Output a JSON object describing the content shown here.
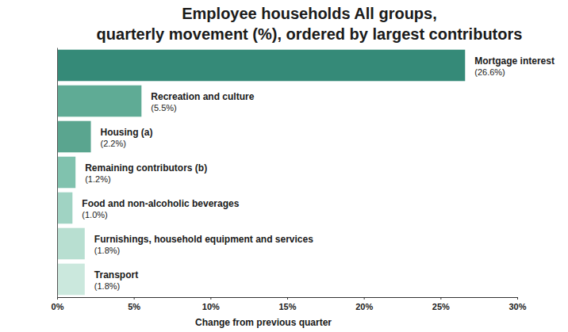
{
  "chart_data": {
    "type": "bar",
    "orientation": "horizontal",
    "title": "Employee households All groups,",
    "subtitle": "quarterly movement (%), ordered by largest contributors",
    "x_label": "Change from previous quarter",
    "categories": [
      "Mortgage interest",
      "Recreation and culture",
      "Housing (a)",
      "Remaining contributors (b)",
      "Food and non-alcoholic beverages",
      "Furnishings, household equipment and services",
      "Transport"
    ],
    "values": [
      26.6,
      5.5,
      2.2,
      1.2,
      1.0,
      1.8,
      1.8
    ],
    "value_labels": [
      "(26.6%)",
      "(5.5%)",
      "(2.2%)",
      "(1.2%)",
      "(1.0%)",
      "(1.8%)",
      "(1.8%)"
    ],
    "colors": [
      "#358a78",
      "#5fab95",
      "#5aa58f",
      "#80c2ae",
      "#a0d3c3",
      "#b8dfd1",
      "#cbe8dd"
    ],
    "xlim": [
      0,
      30
    ],
    "xticks": [
      {
        "value": 0,
        "label": "0%"
      },
      {
        "value": 5,
        "label": "5%"
      },
      {
        "value": 10,
        "label": "10%"
      },
      {
        "value": 15,
        "label": "15%"
      },
      {
        "value": 20,
        "label": "20%"
      },
      {
        "value": 25,
        "label": "25%"
      },
      {
        "value": 30,
        "label": "30%"
      }
    ],
    "data_labels": true,
    "tick_labels": "x",
    "grid": false
  }
}
